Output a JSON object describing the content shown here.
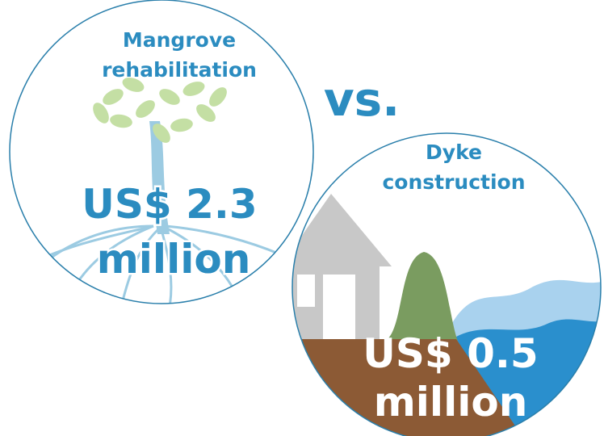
{
  "left": {
    "title": [
      "Mangrove",
      "rehabilitation"
    ],
    "amount": [
      "US$ 2.3",
      "million"
    ]
  },
  "separator": "vs.",
  "right": {
    "title": [
      "Dyke",
      "construction"
    ],
    "amount": [
      "US$ 0.5",
      "million"
    ]
  }
}
